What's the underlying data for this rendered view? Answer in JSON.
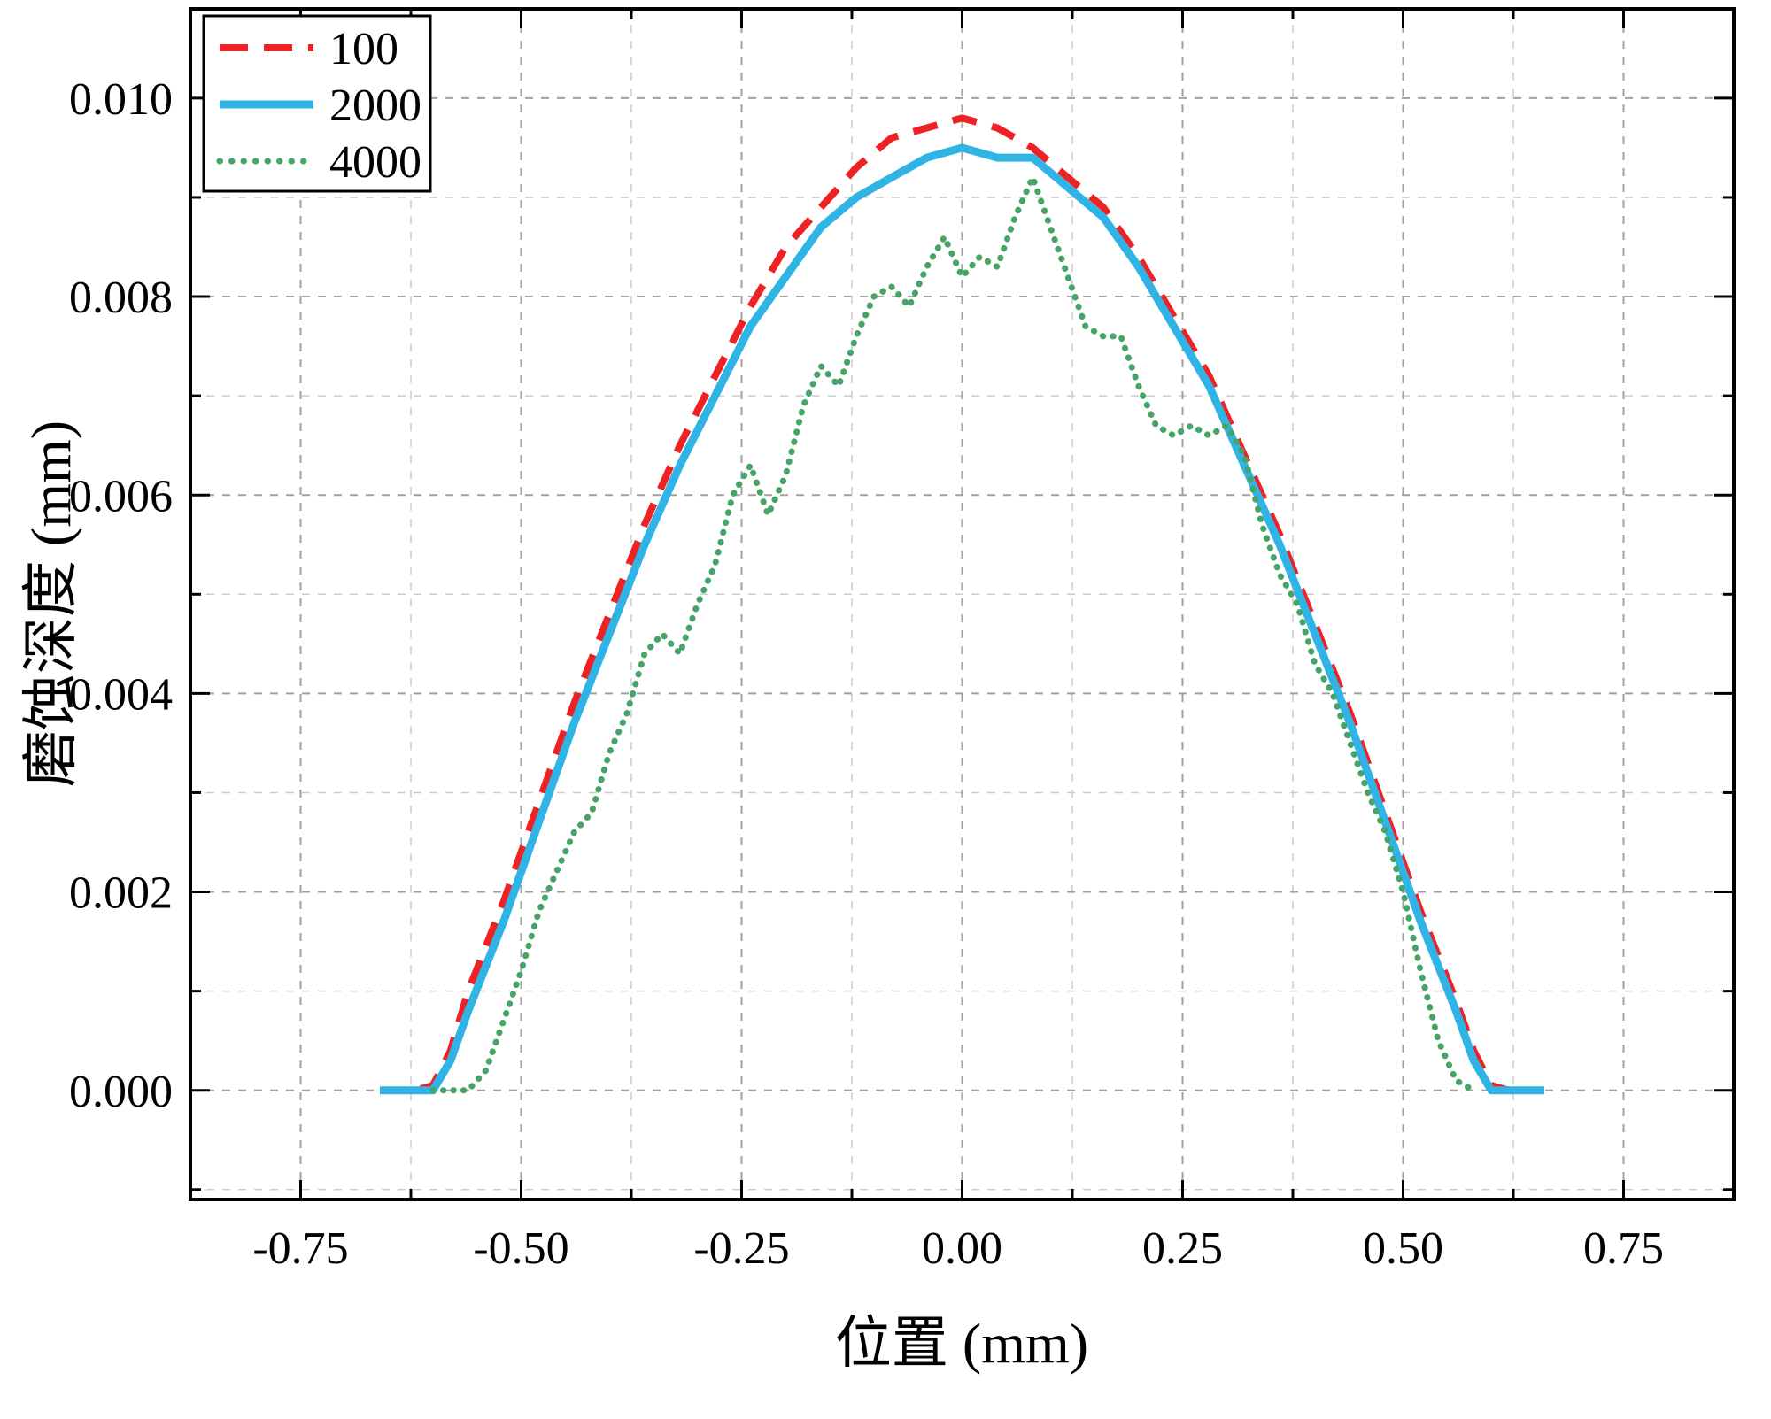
{
  "chart_data": {
    "type": "line",
    "title": "",
    "xlabel": "位置 (mm)",
    "ylabel": "磨蚀深度 (mm)",
    "xlim": [
      -0.875,
      0.875
    ],
    "ylim": [
      -0.0011,
      0.0109
    ],
    "grid": {
      "on": true,
      "major_color": "#a0a0a0",
      "minor_color": "#cccccc",
      "dash": "9 9"
    },
    "legend": {
      "position": "top-left"
    },
    "xticks": {
      "values": [
        -0.75,
        -0.5,
        -0.25,
        0,
        0.25,
        0.5,
        0.75
      ],
      "labels": [
        "-0.75",
        "-0.50",
        "-0.25",
        "0.00",
        "0.25",
        "0.50",
        "0.75"
      ],
      "minor_step": 0.125
    },
    "yticks": {
      "values": [
        0,
        0.002,
        0.004,
        0.006,
        0.008,
        0.01
      ],
      "labels": [
        "0.000",
        "0.002",
        "0.004",
        "0.006",
        "0.008",
        "0.010"
      ],
      "minor_step": 0.001
    },
    "series": [
      {
        "name": "100",
        "color": "#ee2224",
        "style": "dashed",
        "width": 8,
        "x": [
          -0.66,
          -0.62,
          -0.6,
          -0.58,
          -0.56,
          -0.52,
          -0.48,
          -0.44,
          -0.4,
          -0.36,
          -0.32,
          -0.28,
          -0.24,
          -0.2,
          -0.16,
          -0.12,
          -0.08,
          -0.04,
          0.0,
          0.04,
          0.08,
          0.12,
          0.16,
          0.2,
          0.24,
          0.28,
          0.32,
          0.36,
          0.4,
          0.44,
          0.48,
          0.52,
          0.56,
          0.58,
          0.6,
          0.62,
          0.66
        ],
        "y": [
          0,
          0,
          5e-05,
          0.0004,
          0.001,
          0.0019,
          0.0029,
          0.0039,
          0.0048,
          0.0057,
          0.0065,
          0.0072,
          0.0079,
          0.0085,
          0.0089,
          0.0093,
          0.0096,
          0.0097,
          0.0098,
          0.0097,
          0.0095,
          0.0092,
          0.0089,
          0.0084,
          0.0078,
          0.0072,
          0.0064,
          0.0056,
          0.0047,
          0.0038,
          0.0028,
          0.0018,
          0.0009,
          0.0004,
          5e-05,
          0,
          0
        ]
      },
      {
        "name": "2000",
        "color": "#30b4e6",
        "style": "solid",
        "width": 9,
        "x": [
          -0.66,
          -0.62,
          -0.6,
          -0.58,
          -0.56,
          -0.52,
          -0.48,
          -0.44,
          -0.4,
          -0.36,
          -0.32,
          -0.28,
          -0.24,
          -0.2,
          -0.16,
          -0.12,
          -0.08,
          -0.04,
          0.0,
          0.04,
          0.08,
          0.12,
          0.16,
          0.2,
          0.24,
          0.28,
          0.32,
          0.36,
          0.4,
          0.44,
          0.48,
          0.52,
          0.56,
          0.58,
          0.6,
          0.62,
          0.66
        ],
        "y": [
          0,
          0,
          0,
          0.0003,
          0.0008,
          0.0017,
          0.0027,
          0.0037,
          0.0046,
          0.0055,
          0.0063,
          0.007,
          0.0077,
          0.0082,
          0.0087,
          0.009,
          0.0092,
          0.0094,
          0.0095,
          0.0094,
          0.0094,
          0.0091,
          0.0088,
          0.0083,
          0.0077,
          0.0071,
          0.0063,
          0.0055,
          0.0046,
          0.0037,
          0.0027,
          0.0017,
          0.0008,
          0.0003,
          0,
          0,
          0
        ]
      },
      {
        "name": "4000",
        "color": "#47a467",
        "style": "dotted",
        "width": 7,
        "x": [
          -0.6,
          -0.58,
          -0.56,
          -0.54,
          -0.52,
          -0.5,
          -0.48,
          -0.46,
          -0.44,
          -0.42,
          -0.4,
          -0.38,
          -0.36,
          -0.34,
          -0.32,
          -0.3,
          -0.28,
          -0.26,
          -0.24,
          -0.22,
          -0.2,
          -0.18,
          -0.16,
          -0.14,
          -0.12,
          -0.1,
          -0.08,
          -0.06,
          -0.04,
          -0.02,
          0.0,
          0.02,
          0.04,
          0.06,
          0.08,
          0.1,
          0.12,
          0.14,
          0.16,
          0.18,
          0.2,
          0.22,
          0.24,
          0.26,
          0.28,
          0.3,
          0.32,
          0.34,
          0.36,
          0.38,
          0.4,
          0.42,
          0.44,
          0.46,
          0.48,
          0.5,
          0.52,
          0.54,
          0.56,
          0.58
        ],
        "y": [
          0,
          0,
          0,
          0.0002,
          0.0007,
          0.0012,
          0.0018,
          0.0022,
          0.0026,
          0.0028,
          0.0034,
          0.0038,
          0.0044,
          0.0046,
          0.0044,
          0.0049,
          0.0053,
          0.006,
          0.0063,
          0.0058,
          0.0062,
          0.0069,
          0.0073,
          0.0071,
          0.0076,
          0.008,
          0.0081,
          0.0079,
          0.0083,
          0.0086,
          0.0082,
          0.0084,
          0.0083,
          0.0088,
          0.0092,
          0.0087,
          0.0082,
          0.0077,
          0.0076,
          0.0076,
          0.0071,
          0.0067,
          0.0066,
          0.0067,
          0.0066,
          0.0067,
          0.0064,
          0.0057,
          0.0052,
          0.0049,
          0.0043,
          0.004,
          0.0035,
          0.003,
          0.0026,
          0.002,
          0.0012,
          0.0005,
          0.0001,
          0
        ]
      }
    ]
  }
}
